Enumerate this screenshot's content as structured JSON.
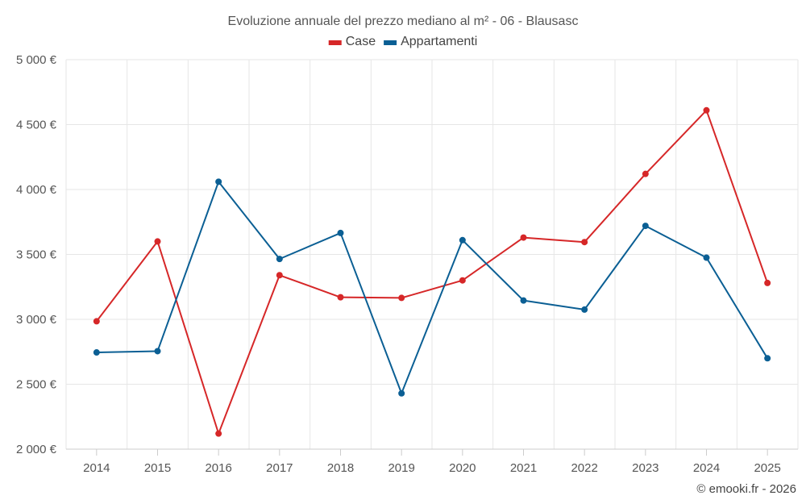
{
  "chart_data": {
    "type": "line",
    "title": "Evoluzione annuale del prezzo mediano al m² - 06 - Blausasc",
    "categories": [
      "2014",
      "2015",
      "2016",
      "2017",
      "2018",
      "2019",
      "2020",
      "2021",
      "2022",
      "2023",
      "2024",
      "2025"
    ],
    "ylim": [
      2000,
      5000
    ],
    "yticks": [
      2000,
      2500,
      3000,
      3500,
      4000,
      4500,
      5000
    ],
    "ytick_labels": [
      "2 000 €",
      "2 500 €",
      "3 000 €",
      "3 500 €",
      "4 000 €",
      "4 500 €",
      "5 000 €"
    ],
    "grid": true,
    "legend_position": "top-center",
    "series": [
      {
        "name": "Case",
        "color": "#d62728",
        "values": [
          2985,
          3600,
          2120,
          3340,
          3170,
          3165,
          3300,
          3630,
          3595,
          4120,
          4610,
          3280
        ]
      },
      {
        "name": "Appartamenti",
        "color": "#0b5f94",
        "values": [
          2745,
          2755,
          4060,
          3465,
          3665,
          2430,
          3610,
          3145,
          3075,
          3720,
          3475,
          2700
        ]
      }
    ]
  },
  "credit": "© emooki.fr - 2026"
}
